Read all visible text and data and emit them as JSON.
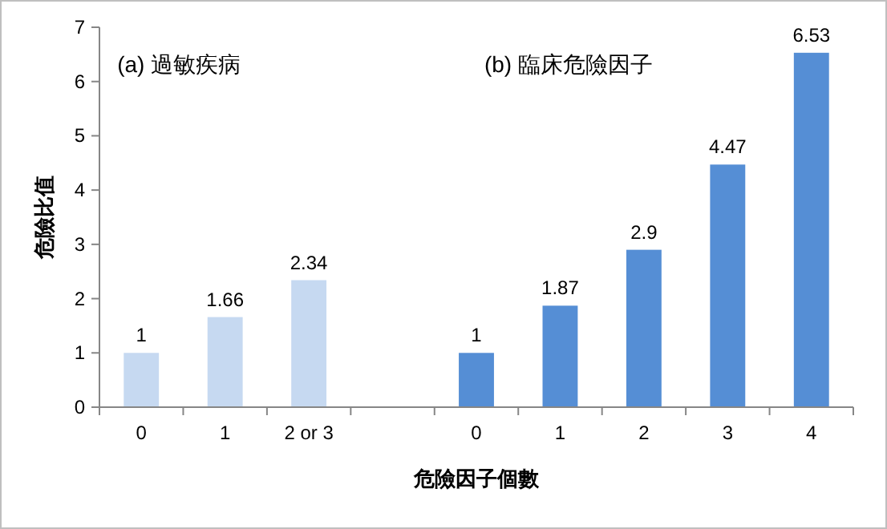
{
  "chart_data": {
    "type": "bar",
    "categories": [
      "0",
      "1",
      "2 or 3",
      null,
      "0",
      "1",
      "2",
      "3",
      "4"
    ],
    "values": [
      1,
      1.66,
      2.34,
      null,
      1,
      1.87,
      2.9,
      4.47,
      6.53
    ],
    "colors": [
      "#c6d9f1",
      "#c6d9f1",
      "#c6d9f1",
      null,
      "#558ed5",
      "#558ed5",
      "#558ed5",
      "#558ed5",
      "#558ed5"
    ],
    "ylim": [
      0,
      7
    ],
    "yticks": [
      0,
      1,
      2,
      3,
      4,
      5,
      6,
      7
    ],
    "data_labels": true,
    "xlabel": "危險因子個數",
    "ylabel": "危險比值",
    "annotations": [
      "(a) 過敏疾病",
      "(b) 臨床危險因子"
    ]
  }
}
